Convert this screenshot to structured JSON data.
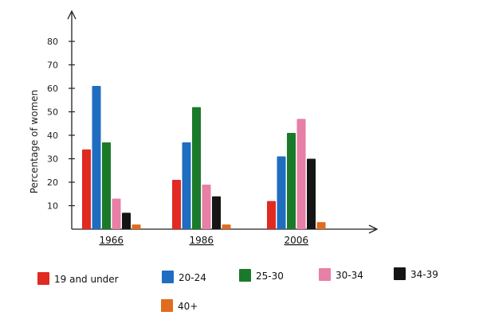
{
  "chart_data": {
    "type": "bar",
    "ylabel": "Percentage of women",
    "xlabel": "",
    "title": "",
    "ylim": [
      0,
      80
    ],
    "yticks": [
      10,
      20,
      30,
      40,
      50,
      60,
      70,
      80
    ],
    "categories": [
      "1966",
      "1986",
      "2006"
    ],
    "series": [
      {
        "name": "19 and under",
        "color": "#e02a22",
        "values": [
          34,
          21,
          12
        ]
      },
      {
        "name": "20-24",
        "color": "#1f6dc0",
        "values": [
          61,
          37,
          31
        ]
      },
      {
        "name": "25-30",
        "color": "#1b7a2a",
        "values": [
          37,
          52,
          41
        ]
      },
      {
        "name": "30-34",
        "color": "#e77fa6",
        "values": [
          13,
          19,
          47
        ]
      },
      {
        "name": "34-39",
        "color": "#151515",
        "values": [
          7,
          14,
          30
        ]
      },
      {
        "name": "40+",
        "color": "#e06c1f",
        "values": [
          2,
          2,
          3
        ]
      }
    ],
    "legend_position": "bottom",
    "grid": false
  }
}
